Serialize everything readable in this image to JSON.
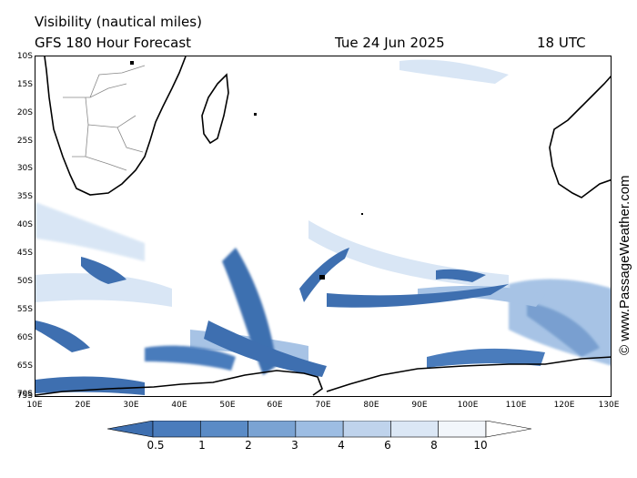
{
  "header": {
    "title": "Visibility (nautical miles)",
    "subtitle": "GFS 180 Hour Forecast",
    "date": "Tue 24 Jun 2025",
    "time": "18 UTC"
  },
  "credit": "© www.PassageWeather.com",
  "map": {
    "lat_labels": [
      "10S",
      "15S",
      "20S",
      "25S",
      "30S",
      "35S",
      "40S",
      "45S",
      "50S",
      "55S",
      "60S",
      "65S",
      "70S",
      "75S"
    ],
    "lon_labels": [
      "10E",
      "20E",
      "30E",
      "40E",
      "50E",
      "60E",
      "70E",
      "80E",
      "90E",
      "100E",
      "110E",
      "120E",
      "130E"
    ],
    "colors": {
      "land_outline": "#000000",
      "border": "#888888",
      "very_low": "#3e6fb0",
      "low": "#6a95cb",
      "mid": "#9dbde3",
      "high": "#d5e4f4",
      "clear": "#ffffff"
    }
  },
  "legend": {
    "labels": [
      "0.5",
      "1",
      "2",
      "3",
      "4",
      "6",
      "8",
      "10"
    ],
    "colors": [
      "#3e6fb0",
      "#4a7cbc",
      "#5a8bc6",
      "#7aa3d3",
      "#9dbde3",
      "#bfd3ec",
      "#dbe7f5",
      "#f2f6fb",
      "#ffffff"
    ]
  }
}
